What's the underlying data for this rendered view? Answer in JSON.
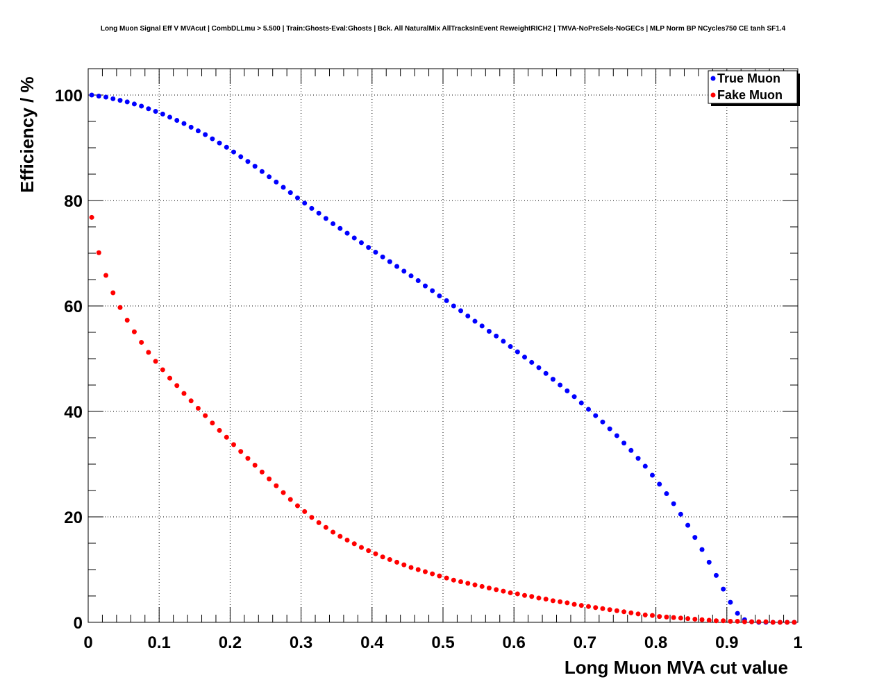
{
  "chart_data": {
    "type": "scatter",
    "title": "Long Muon Signal Eff V MVAcut | CombDLLmu > 5.500 | Train:Ghosts-Eval:Ghosts | Bck. All NaturalMix AllTracksInEvent ReweightRICH2 | TMVA-NoPreSels-NoGECs | MLP Norm BP NCycles750 CE tanh SF1.4",
    "xlabel": "Long Muon MVA cut value",
    "ylabel": "Efficiency / %",
    "xlim": [
      0,
      1
    ],
    "ylim": [
      0,
      105
    ],
    "xticks": [
      0,
      0.1,
      0.2,
      0.3,
      0.4,
      0.5,
      0.6,
      0.7,
      0.8,
      0.9,
      1
    ],
    "xtick_labels": [
      "0",
      "0.1",
      "0.2",
      "0.3",
      "0.4",
      "0.5",
      "0.6",
      "0.7",
      "0.8",
      "0.9",
      "1"
    ],
    "yticks": [
      0,
      20,
      40,
      60,
      80,
      100
    ],
    "ytick_labels": [
      "0",
      "20",
      "40",
      "60",
      "80",
      "100"
    ],
    "grid": true,
    "legend_position": "top-right",
    "x": [
      0.005,
      0.015,
      0.025,
      0.035,
      0.045,
      0.055,
      0.065,
      0.075,
      0.085,
      0.095,
      0.105,
      0.115,
      0.125,
      0.135,
      0.145,
      0.155,
      0.165,
      0.175,
      0.185,
      0.195,
      0.205,
      0.215,
      0.225,
      0.235,
      0.245,
      0.255,
      0.265,
      0.275,
      0.285,
      0.295,
      0.305,
      0.315,
      0.325,
      0.335,
      0.345,
      0.355,
      0.365,
      0.375,
      0.385,
      0.395,
      0.405,
      0.415,
      0.425,
      0.435,
      0.445,
      0.455,
      0.465,
      0.475,
      0.485,
      0.495,
      0.505,
      0.515,
      0.525,
      0.535,
      0.545,
      0.555,
      0.565,
      0.575,
      0.585,
      0.595,
      0.605,
      0.615,
      0.625,
      0.635,
      0.645,
      0.655,
      0.665,
      0.675,
      0.685,
      0.695,
      0.705,
      0.715,
      0.725,
      0.735,
      0.745,
      0.755,
      0.765,
      0.775,
      0.785,
      0.795,
      0.805,
      0.815,
      0.825,
      0.835,
      0.845,
      0.855,
      0.865,
      0.875,
      0.885,
      0.895,
      0.905,
      0.915,
      0.925,
      0.935,
      0.945,
      0.955,
      0.965,
      0.975,
      0.985,
      0.995
    ],
    "series": [
      {
        "name": "True Muon",
        "color": "#0000ff",
        "values": [
          100.0,
          99.8,
          99.6,
          99.3,
          99.0,
          98.7,
          98.3,
          97.9,
          97.4,
          96.9,
          96.4,
          95.8,
          95.2,
          94.6,
          93.9,
          93.2,
          92.5,
          91.7,
          90.9,
          90.1,
          89.2,
          88.3,
          87.4,
          86.5,
          85.5,
          84.5,
          83.5,
          82.5,
          81.5,
          80.5,
          79.5,
          78.5,
          77.6,
          76.6,
          75.6,
          74.7,
          73.8,
          72.9,
          72.0,
          71.1,
          70.2,
          69.3,
          68.4,
          67.5,
          66.6,
          65.7,
          64.8,
          63.8,
          62.9,
          61.9,
          61.0,
          60.0,
          59.1,
          58.1,
          57.1,
          56.2,
          55.2,
          54.3,
          53.3,
          52.3,
          51.3,
          50.3,
          49.3,
          48.3,
          47.2,
          46.1,
          45.0,
          43.9,
          42.8,
          41.6,
          40.4,
          39.2,
          38.0,
          36.7,
          35.4,
          34.0,
          32.6,
          31.1,
          29.6,
          27.9,
          26.2,
          24.4,
          22.5,
          20.5,
          18.4,
          16.1,
          13.8,
          11.4,
          8.9,
          6.3,
          3.8,
          1.7,
          0.5,
          0.1,
          0.0,
          0.0,
          0.0,
          0.0,
          0.0,
          0.0
        ]
      },
      {
        "name": "Fake Muon",
        "color": "#ff0000",
        "values": [
          76.8,
          70.1,
          65.8,
          62.5,
          59.7,
          57.3,
          55.1,
          53.1,
          51.2,
          49.5,
          47.9,
          46.3,
          44.9,
          43.4,
          42.0,
          40.6,
          39.2,
          37.8,
          36.4,
          35.1,
          33.7,
          32.4,
          31.1,
          29.8,
          28.5,
          27.2,
          25.9,
          24.6,
          23.3,
          22.1,
          21.0,
          19.9,
          18.9,
          18.0,
          17.1,
          16.3,
          15.6,
          14.9,
          14.2,
          13.6,
          13.0,
          12.4,
          11.9,
          11.4,
          10.9,
          10.4,
          10.0,
          9.6,
          9.2,
          8.8,
          8.4,
          8.0,
          7.7,
          7.4,
          7.1,
          6.8,
          6.5,
          6.2,
          5.9,
          5.6,
          5.4,
          5.1,
          4.9,
          4.6,
          4.4,
          4.1,
          3.9,
          3.7,
          3.4,
          3.2,
          3.0,
          2.8,
          2.6,
          2.4,
          2.2,
          2.0,
          1.8,
          1.6,
          1.4,
          1.3,
          1.1,
          1.0,
          0.9,
          0.8,
          0.7,
          0.6,
          0.5,
          0.4,
          0.3,
          0.3,
          0.2,
          0.2,
          0.1,
          0.1,
          0.1,
          0.1,
          0.0,
          0.0,
          0.0,
          0.0
        ]
      }
    ]
  }
}
